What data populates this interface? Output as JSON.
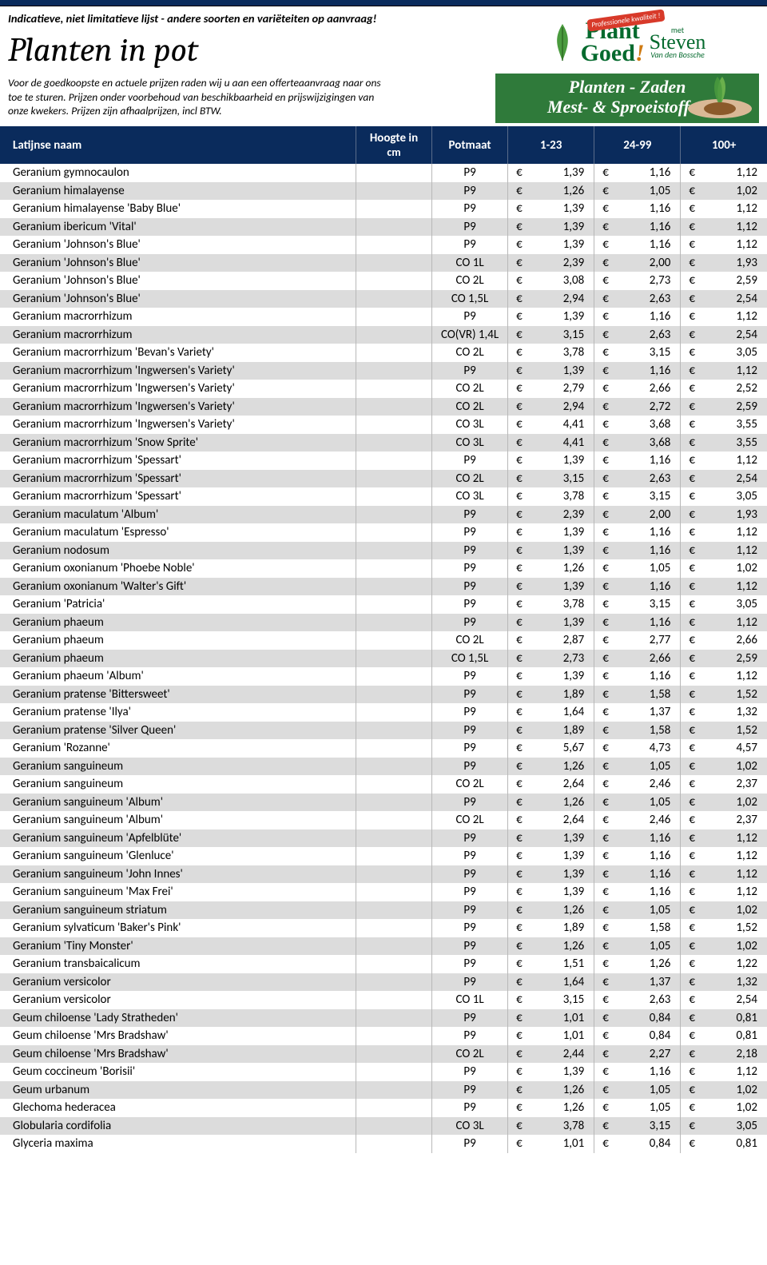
{
  "header": {
    "tagline": "Indicatieve, niet limitatieve lijst - andere soorten en variëteiten op aanvraag!",
    "title": "Planten in pot",
    "subtitle": "Voor de goedkoopste en actuele prijzen raden wij u aan een offerteaanvraag naar ons toe te sturen. Prijzen onder voorbehoud van beschikbaarheid en prijswijzigingen van onze kwekers.  Prijzen zijn afhaalprijzen, incl BTW.",
    "logo": {
      "brand_line1": "Plant",
      "brand_line2": "Goed",
      "brand_excl": "!",
      "met": "met",
      "steven": "Steven",
      "steven_sub": "Van den Bossche",
      "prof_badge": "Professionele kwaliteit !",
      "banner_line1": "Planten - Zaden",
      "banner_line2": "Mest- & Sproeistoffen"
    }
  },
  "columns": {
    "name": "Latijnse naam",
    "height_line1": "Hoogte in",
    "height_line2": "cm",
    "pot": "Potmaat",
    "p1": "1-23",
    "p2": "24-99",
    "p3": "100+"
  },
  "currency": "€",
  "colors": {
    "header_bg": "#0a2b5c",
    "row_alt": "#dcdcdc",
    "green": "#2f7a3a"
  },
  "rows": [
    {
      "name": "Geranium gymnocaulon",
      "h": "",
      "pot": "P9",
      "p1": "1,39",
      "p2": "1,16",
      "p3": "1,12"
    },
    {
      "name": "Geranium himalayense",
      "h": "",
      "pot": "P9",
      "p1": "1,26",
      "p2": "1,05",
      "p3": "1,02"
    },
    {
      "name": "Geranium himalayense 'Baby Blue'",
      "h": "",
      "pot": "P9",
      "p1": "1,39",
      "p2": "1,16",
      "p3": "1,12"
    },
    {
      "name": "Geranium ibericum 'Vital'",
      "h": "",
      "pot": "P9",
      "p1": "1,39",
      "p2": "1,16",
      "p3": "1,12"
    },
    {
      "name": "Geranium 'Johnson's Blue'",
      "h": "",
      "pot": "P9",
      "p1": "1,39",
      "p2": "1,16",
      "p3": "1,12"
    },
    {
      "name": "Geranium 'Johnson's Blue'",
      "h": "",
      "pot": "CO 1L",
      "p1": "2,39",
      "p2": "2,00",
      "p3": "1,93"
    },
    {
      "name": "Geranium 'Johnson's Blue'",
      "h": "",
      "pot": "CO 2L",
      "p1": "3,08",
      "p2": "2,73",
      "p3": "2,59"
    },
    {
      "name": "Geranium 'Johnson's Blue'",
      "h": "",
      "pot": "CO 1,5L",
      "p1": "2,94",
      "p2": "2,63",
      "p3": "2,54"
    },
    {
      "name": "Geranium macrorrhizum",
      "h": "",
      "pot": "P9",
      "p1": "1,39",
      "p2": "1,16",
      "p3": "1,12"
    },
    {
      "name": "Geranium macrorrhizum",
      "h": "",
      "pot": "CO(VR) 1,4L",
      "p1": "3,15",
      "p2": "2,63",
      "p3": "2,54"
    },
    {
      "name": "Geranium macrorrhizum 'Bevan's Variety'",
      "h": "",
      "pot": "CO 2L",
      "p1": "3,78",
      "p2": "3,15",
      "p3": "3,05"
    },
    {
      "name": "Geranium macrorrhizum 'Ingwersen's Variety'",
      "h": "",
      "pot": "P9",
      "p1": "1,39",
      "p2": "1,16",
      "p3": "1,12"
    },
    {
      "name": "Geranium macrorrhizum 'Ingwersen's Variety'",
      "h": "",
      "pot": "CO 2L",
      "p1": "2,79",
      "p2": "2,66",
      "p3": "2,52"
    },
    {
      "name": "Geranium macrorrhizum 'Ingwersen's Variety'",
      "h": "",
      "pot": "CO 2L",
      "p1": "2,94",
      "p2": "2,72",
      "p3": "2,59"
    },
    {
      "name": "Geranium macrorrhizum 'Ingwersen's Variety'",
      "h": "",
      "pot": "CO 3L",
      "p1": "4,41",
      "p2": "3,68",
      "p3": "3,55"
    },
    {
      "name": "Geranium macrorrhizum 'Snow Sprite'",
      "h": "",
      "pot": "CO 3L",
      "p1": "4,41",
      "p2": "3,68",
      "p3": "3,55"
    },
    {
      "name": "Geranium macrorrhizum 'Spessart'",
      "h": "",
      "pot": "P9",
      "p1": "1,39",
      "p2": "1,16",
      "p3": "1,12"
    },
    {
      "name": "Geranium macrorrhizum 'Spessart'",
      "h": "",
      "pot": "CO 2L",
      "p1": "3,15",
      "p2": "2,63",
      "p3": "2,54"
    },
    {
      "name": "Geranium macrorrhizum 'Spessart'",
      "h": "",
      "pot": "CO 3L",
      "p1": "3,78",
      "p2": "3,15",
      "p3": "3,05"
    },
    {
      "name": "Geranium maculatum 'Album'",
      "h": "",
      "pot": "P9",
      "p1": "2,39",
      "p2": "2,00",
      "p3": "1,93"
    },
    {
      "name": "Geranium maculatum 'Espresso'",
      "h": "",
      "pot": "P9",
      "p1": "1,39",
      "p2": "1,16",
      "p3": "1,12"
    },
    {
      "name": "Geranium nodosum",
      "h": "",
      "pot": "P9",
      "p1": "1,39",
      "p2": "1,16",
      "p3": "1,12"
    },
    {
      "name": "Geranium oxonianum 'Phoebe Noble'",
      "h": "",
      "pot": "P9",
      "p1": "1,26",
      "p2": "1,05",
      "p3": "1,02"
    },
    {
      "name": "Geranium oxonianum 'Walter's Gift'",
      "h": "",
      "pot": "P9",
      "p1": "1,39",
      "p2": "1,16",
      "p3": "1,12"
    },
    {
      "name": "Geranium 'Patricia'",
      "h": "",
      "pot": "P9",
      "p1": "3,78",
      "p2": "3,15",
      "p3": "3,05"
    },
    {
      "name": "Geranium phaeum",
      "h": "",
      "pot": "P9",
      "p1": "1,39",
      "p2": "1,16",
      "p3": "1,12"
    },
    {
      "name": "Geranium phaeum",
      "h": "",
      "pot": "CO 2L",
      "p1": "2,87",
      "p2": "2,77",
      "p3": "2,66"
    },
    {
      "name": "Geranium phaeum",
      "h": "",
      "pot": "CO 1,5L",
      "p1": "2,73",
      "p2": "2,66",
      "p3": "2,59"
    },
    {
      "name": "Geranium phaeum 'Album'",
      "h": "",
      "pot": "P9",
      "p1": "1,39",
      "p2": "1,16",
      "p3": "1,12"
    },
    {
      "name": "Geranium pratense 'Bittersweet'",
      "h": "",
      "pot": "P9",
      "p1": "1,89",
      "p2": "1,58",
      "p3": "1,52"
    },
    {
      "name": "Geranium pratense 'Ilya'",
      "h": "",
      "pot": "P9",
      "p1": "1,64",
      "p2": "1,37",
      "p3": "1,32"
    },
    {
      "name": "Geranium pratense 'Silver Queen'",
      "h": "",
      "pot": "P9",
      "p1": "1,89",
      "p2": "1,58",
      "p3": "1,52"
    },
    {
      "name": "Geranium 'Rozanne'",
      "h": "",
      "pot": "P9",
      "p1": "5,67",
      "p2": "4,73",
      "p3": "4,57"
    },
    {
      "name": "Geranium sanguineum",
      "h": "",
      "pot": "P9",
      "p1": "1,26",
      "p2": "1,05",
      "p3": "1,02"
    },
    {
      "name": "Geranium sanguineum",
      "h": "",
      "pot": "CO 2L",
      "p1": "2,64",
      "p2": "2,46",
      "p3": "2,37"
    },
    {
      "name": "Geranium sanguineum 'Album'",
      "h": "",
      "pot": "P9",
      "p1": "1,26",
      "p2": "1,05",
      "p3": "1,02"
    },
    {
      "name": "Geranium sanguineum 'Album'",
      "h": "",
      "pot": "CO 2L",
      "p1": "2,64",
      "p2": "2,46",
      "p3": "2,37"
    },
    {
      "name": "Geranium sanguineum 'Apfelblüte'",
      "h": "",
      "pot": "P9",
      "p1": "1,39",
      "p2": "1,16",
      "p3": "1,12"
    },
    {
      "name": "Geranium sanguineum 'Glenluce'",
      "h": "",
      "pot": "P9",
      "p1": "1,39",
      "p2": "1,16",
      "p3": "1,12"
    },
    {
      "name": "Geranium sanguineum 'John Innes'",
      "h": "",
      "pot": "P9",
      "p1": "1,39",
      "p2": "1,16",
      "p3": "1,12"
    },
    {
      "name": "Geranium sanguineum 'Max Frei'",
      "h": "",
      "pot": "P9",
      "p1": "1,39",
      "p2": "1,16",
      "p3": "1,12"
    },
    {
      "name": "Geranium sanguineum striatum",
      "h": "",
      "pot": "P9",
      "p1": "1,26",
      "p2": "1,05",
      "p3": "1,02"
    },
    {
      "name": "Geranium sylvaticum 'Baker's Pink'",
      "h": "",
      "pot": "P9",
      "p1": "1,89",
      "p2": "1,58",
      "p3": "1,52"
    },
    {
      "name": "Geranium 'Tiny Monster'",
      "h": "",
      "pot": "P9",
      "p1": "1,26",
      "p2": "1,05",
      "p3": "1,02"
    },
    {
      "name": "Geranium transbaicalicum",
      "h": "",
      "pot": "P9",
      "p1": "1,51",
      "p2": "1,26",
      "p3": "1,22"
    },
    {
      "name": "Geranium versicolor",
      "h": "",
      "pot": "P9",
      "p1": "1,64",
      "p2": "1,37",
      "p3": "1,32"
    },
    {
      "name": "Geranium versicolor",
      "h": "",
      "pot": "CO 1L",
      "p1": "3,15",
      "p2": "2,63",
      "p3": "2,54"
    },
    {
      "name": "Geum chiloense 'Lady Stratheden'",
      "h": "",
      "pot": "P9",
      "p1": "1,01",
      "p2": "0,84",
      "p3": "0,81"
    },
    {
      "name": "Geum chiloense 'Mrs Bradshaw'",
      "h": "",
      "pot": "P9",
      "p1": "1,01",
      "p2": "0,84",
      "p3": "0,81"
    },
    {
      "name": "Geum chiloense 'Mrs Bradshaw'",
      "h": "",
      "pot": "CO 2L",
      "p1": "2,44",
      "p2": "2,27",
      "p3": "2,18"
    },
    {
      "name": "Geum coccineum 'Borisii'",
      "h": "",
      "pot": "P9",
      "p1": "1,39",
      "p2": "1,16",
      "p3": "1,12"
    },
    {
      "name": "Geum urbanum",
      "h": "",
      "pot": "P9",
      "p1": "1,26",
      "p2": "1,05",
      "p3": "1,02"
    },
    {
      "name": "Glechoma hederacea",
      "h": "",
      "pot": "P9",
      "p1": "1,26",
      "p2": "1,05",
      "p3": "1,02"
    },
    {
      "name": "Globularia cordifolia",
      "h": "",
      "pot": "CO 3L",
      "p1": "3,78",
      "p2": "3,15",
      "p3": "3,05"
    },
    {
      "name": "Glyceria maxima",
      "h": "",
      "pot": "P9",
      "p1": "1,01",
      "p2": "0,84",
      "p3": "0,81"
    }
  ]
}
